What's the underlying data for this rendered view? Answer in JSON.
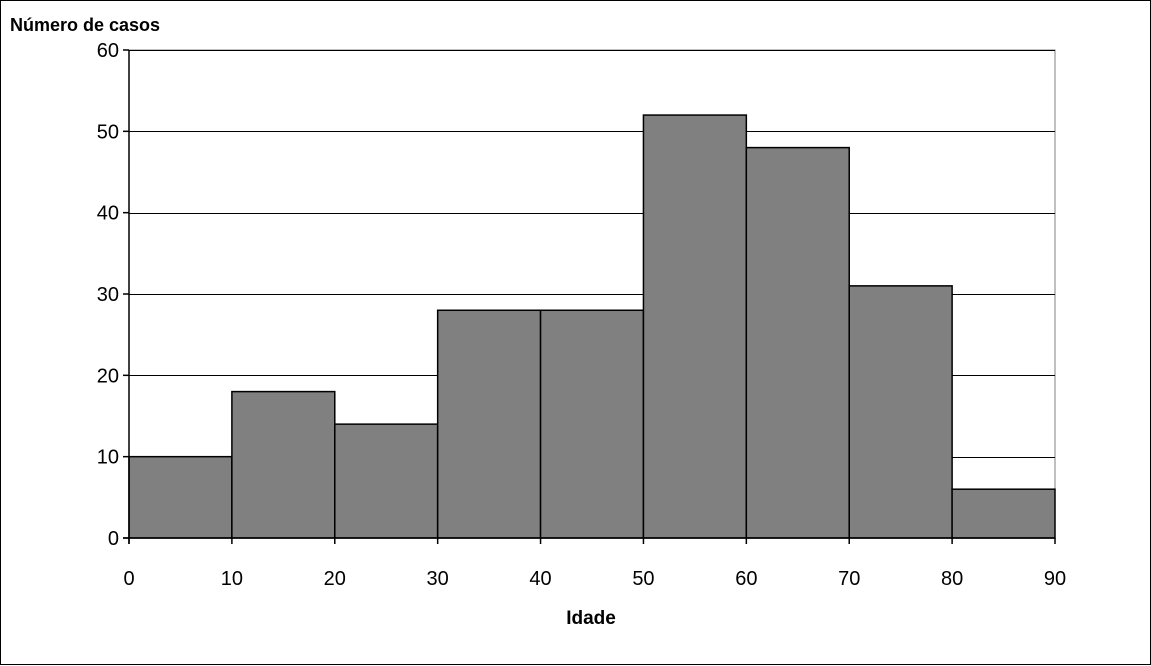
{
  "chart_data": {
    "type": "bar",
    "histogram": true,
    "title": "",
    "xlabel": "Idade",
    "ylabel": "Número de casos",
    "bins": [
      {
        "from": 0,
        "to": 10,
        "value": 10
      },
      {
        "from": 10,
        "to": 20,
        "value": 18
      },
      {
        "from": 20,
        "to": 30,
        "value": 14
      },
      {
        "from": 30,
        "to": 40,
        "value": 28
      },
      {
        "from": 40,
        "to": 50,
        "value": 28
      },
      {
        "from": 50,
        "to": 60,
        "value": 52
      },
      {
        "from": 60,
        "to": 70,
        "value": 48
      },
      {
        "from": 70,
        "to": 80,
        "value": 31
      },
      {
        "from": 80,
        "to": 90,
        "value": 6
      }
    ],
    "xlim": [
      0,
      90
    ],
    "ylim": [
      0,
      60
    ],
    "x_ticks": [
      0,
      10,
      20,
      30,
      40,
      50,
      60,
      70,
      80,
      90
    ],
    "y_ticks": [
      0,
      10,
      20,
      30,
      40,
      50,
      60
    ],
    "grid": "horizontal",
    "legend": "none",
    "colors": {
      "bar_fill": "#808080",
      "bar_stroke": "#000000",
      "grid": "#000000",
      "plot_border": "#808080"
    }
  }
}
